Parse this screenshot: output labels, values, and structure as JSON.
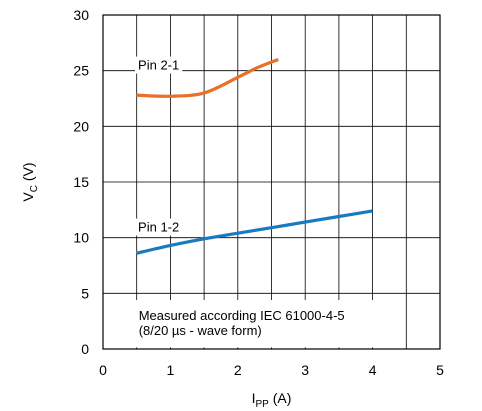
{
  "chart_data": {
    "type": "line",
    "xlabel": {
      "main": "I",
      "sub": "PP",
      "unit": " (A)"
    },
    "ylabel": {
      "main": "V",
      "sub": "C",
      "unit": " (V)"
    },
    "xlim": [
      0,
      5
    ],
    "ylim": [
      0,
      30
    ],
    "x_ticks": [
      0,
      1,
      2,
      3,
      4,
      5
    ],
    "y_ticks": [
      0,
      5,
      10,
      15,
      20,
      25,
      30
    ],
    "x_tick_labels": [
      "0",
      "1",
      "2",
      "3",
      "4",
      "5"
    ],
    "y_tick_labels": [
      "0",
      "5",
      "10",
      "15",
      "20",
      "25",
      "30"
    ],
    "x_minor_step": 0.5,
    "grid": true,
    "series": [
      {
        "name": "Pin 2-1",
        "color": "#e8702a",
        "x": [
          0.5,
          1.0,
          1.5,
          2.0,
          2.3,
          2.6
        ],
        "y": [
          22.8,
          22.7,
          23.0,
          24.4,
          25.3,
          26.0
        ]
      },
      {
        "name": "Pin 1-2",
        "color": "#1a7abf",
        "x": [
          0.5,
          1.0,
          1.5,
          2.0,
          2.5,
          3.0,
          3.5,
          4.0
        ],
        "y": [
          8.6,
          9.3,
          9.9,
          10.4,
          10.9,
          11.4,
          11.9,
          12.4
        ]
      }
    ],
    "annotations": [
      "Measured according IEC 61000-4-5",
      "(8/20 µs - wave form)"
    ]
  }
}
